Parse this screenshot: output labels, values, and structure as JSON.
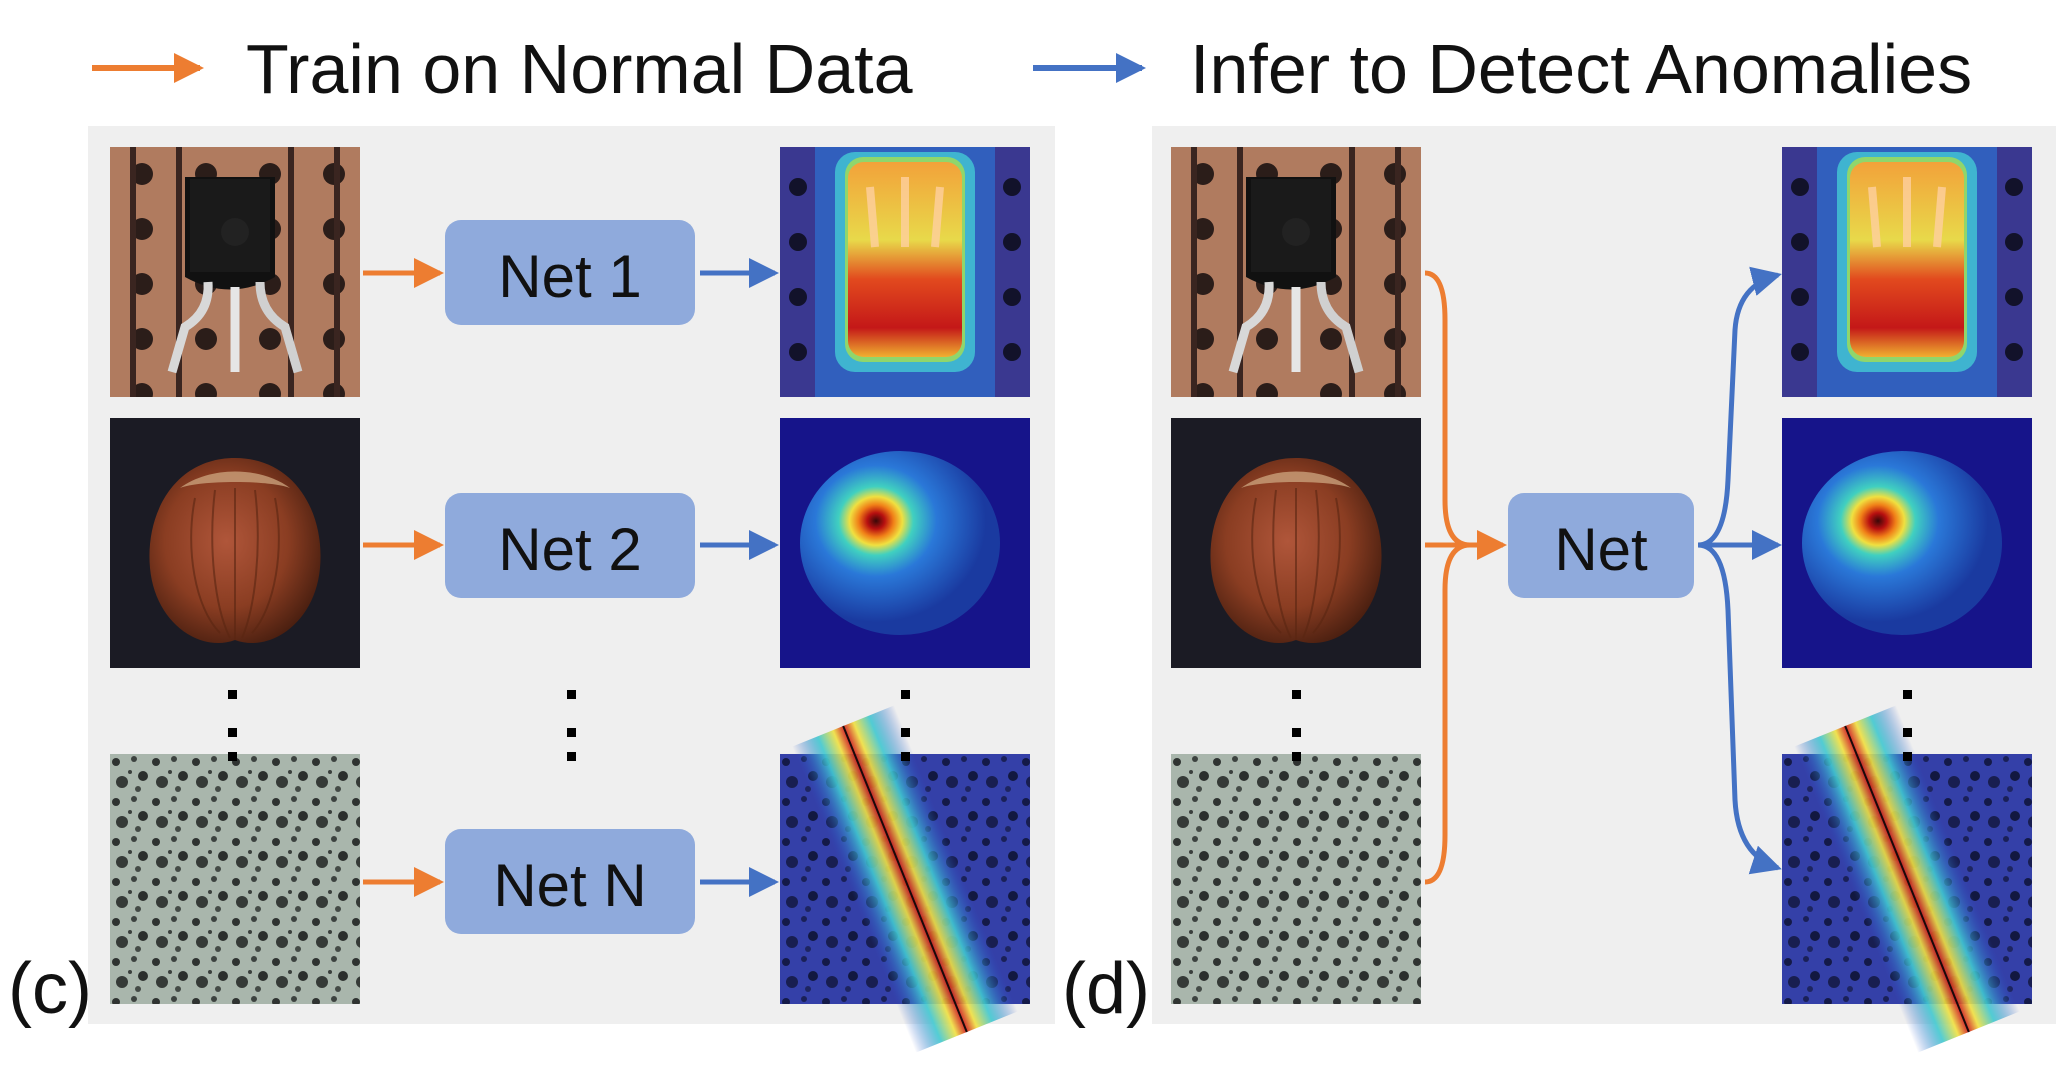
{
  "legend": {
    "train_label": "Train on Normal Data",
    "infer_label": "Infer to Detect Anomalies"
  },
  "colors": {
    "train_arrow": "#ED7D31",
    "infer_arrow": "#4472C4",
    "net_box": "#8FAADC",
    "panel_bg": "#EFEFEF"
  },
  "panel_c": {
    "label": "(c)",
    "nets": [
      "Net 1",
      "Net 2",
      "Net N"
    ],
    "samples": [
      "transistor",
      "hazelnut",
      "texture"
    ]
  },
  "panel_d": {
    "label": "(d)",
    "net": "Net",
    "samples": [
      "transistor",
      "hazelnut",
      "texture"
    ]
  },
  "ellipsis": "⋮"
}
